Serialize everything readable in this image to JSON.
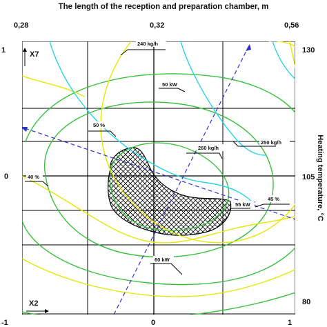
{
  "chart_data": {
    "type": "contour",
    "title": "The length of the reception and preparation chamber, m",
    "right_axis_label": "Heating temperature, °C",
    "top_ticks": [
      "0,28",
      "0,32",
      "0,56"
    ],
    "bottom_ticks": [
      "-1",
      "0",
      "1"
    ],
    "left_ticks": [
      "1",
      "0",
      "-1"
    ],
    "right_ticks": [
      "130",
      "105",
      "80"
    ],
    "x_axis_name": "X2",
    "y_axis_name": "X7",
    "xlim": [
      -1,
      1
    ],
    "ylim": [
      -1,
      1
    ],
    "grid": true,
    "colors": {
      "green": "#39c03c",
      "yellow": "#e6e600",
      "cyan": "#29d5e4",
      "axis_line": "#3030c8",
      "grid": "#000000",
      "optimum_hatch": "#000000"
    },
    "contour_labels": [
      {
        "text": "240 kg/h",
        "color": "cyan"
      },
      {
        "text": "250 kg/h",
        "color": "cyan"
      },
      {
        "text": "260 kg/h",
        "color": "cyan"
      },
      {
        "text": "50 kW",
        "color": "green"
      },
      {
        "text": "55 kW",
        "color": "green"
      },
      {
        "text": "60 kW",
        "color": "green"
      },
      {
        "text": "40 %",
        "color": "yellow"
      },
      {
        "text": "45 %",
        "color": "yellow"
      },
      {
        "text": "50 %",
        "color": "yellow"
      }
    ],
    "optimum_region": {
      "pattern": "crosshatch",
      "description_shown": false
    }
  }
}
